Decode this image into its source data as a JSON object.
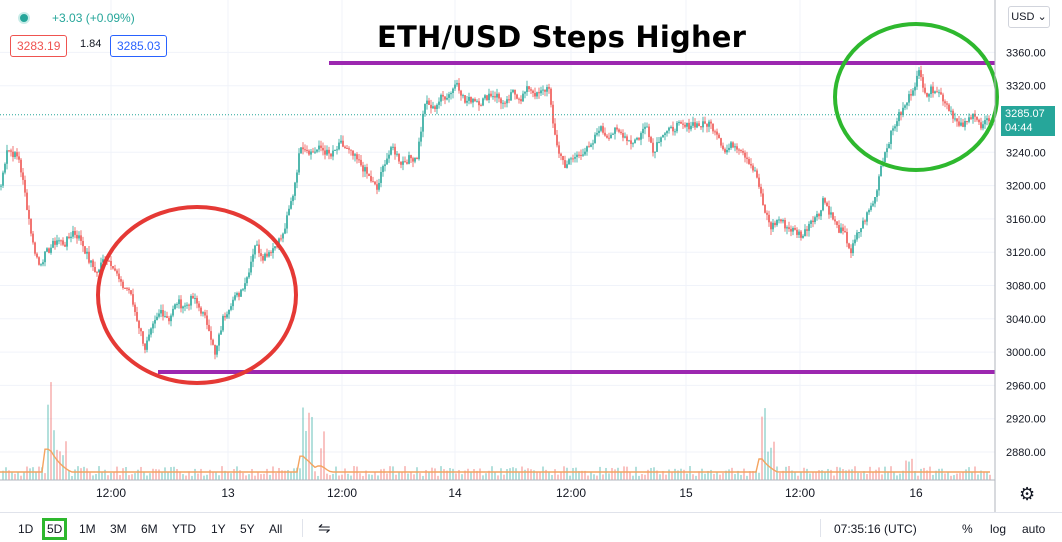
{
  "header": {
    "change": "+3.03 (+0.09%)",
    "bid": "3283.19",
    "spread": "1.84",
    "ask": "3285.03",
    "currency": "USD"
  },
  "price_tag": {
    "price": "3285.07",
    "countdown": "04:44"
  },
  "toolbar": {
    "timeframes": [
      "1D",
      "5D",
      "1M",
      "3M",
      "6M",
      "YTD",
      "1Y",
      "5Y",
      "All"
    ],
    "active_timeframe": "5D",
    "time": "07:35:16 (UTC)",
    "percent": "%",
    "log": "log",
    "auto": "auto"
  },
  "icons": {
    "settings": "gear-icon",
    "compare": "date-range-icon",
    "status": "market-status-dot"
  },
  "colors": {
    "up": "#26a69a",
    "down": "#ef5350",
    "resistance_line": "#9c27b0",
    "support_line": "#9c27b0",
    "red_circle": "#e53935",
    "green_circle": "#2eb82e",
    "volume_ma": "#f4a460"
  },
  "chart_data": {
    "type": "candlestick",
    "title": "ETH/USD Steps Higher",
    "x_tick_labels": [
      "12:00",
      "13",
      "12:00",
      "14",
      "12:00",
      "15",
      "12:00",
      "16"
    ],
    "y_tick_labels": [
      "3360.00",
      "3320.00",
      "3280.00",
      "3240.00",
      "3200.00",
      "3160.00",
      "3120.00",
      "3080.00",
      "3040.00",
      "3000.00",
      "2960.00",
      "2920.00",
      "2880.00"
    ],
    "ylim": [
      2860,
      3380
    ],
    "last_price": 3285.07,
    "price_path": [
      [
        0,
        3200
      ],
      [
        6,
        3245
      ],
      [
        18,
        3232
      ],
      [
        24,
        3190
      ],
      [
        32,
        3130
      ],
      [
        38,
        3105
      ],
      [
        46,
        3120
      ],
      [
        56,
        3135
      ],
      [
        64,
        3130
      ],
      [
        72,
        3145
      ],
      [
        80,
        3135
      ],
      [
        88,
        3110
      ],
      [
        96,
        3095
      ],
      [
        104,
        3115
      ],
      [
        112,
        3105
      ],
      [
        120,
        3080
      ],
      [
        128,
        3075
      ],
      [
        136,
        3040
      ],
      [
        144,
        3005
      ],
      [
        152,
        3030
      ],
      [
        160,
        3050
      ],
      [
        168,
        3040
      ],
      [
        176,
        3060
      ],
      [
        184,
        3055
      ],
      [
        192,
        3065
      ],
      [
        200,
        3050
      ],
      [
        208,
        3030
      ],
      [
        214,
        2995
      ],
      [
        222,
        3040
      ],
      [
        230,
        3060
      ],
      [
        238,
        3070
      ],
      [
        246,
        3090
      ],
      [
        254,
        3130
      ],
      [
        262,
        3115
      ],
      [
        272,
        3125
      ],
      [
        282,
        3140
      ],
      [
        292,
        3190
      ],
      [
        300,
        3250
      ],
      [
        310,
        3240
      ],
      [
        320,
        3245
      ],
      [
        330,
        3235
      ],
      [
        340,
        3250
      ],
      [
        350,
        3238
      ],
      [
        360,
        3225
      ],
      [
        368,
        3210
      ],
      [
        376,
        3195
      ],
      [
        384,
        3230
      ],
      [
        392,
        3245
      ],
      [
        400,
        3228
      ],
      [
        408,
        3232
      ],
      [
        416,
        3235
      ],
      [
        424,
        3300
      ],
      [
        432,
        3292
      ],
      [
        440,
        3305
      ],
      [
        448,
        3310
      ],
      [
        456,
        3325
      ],
      [
        464,
        3300
      ],
      [
        472,
        3305
      ],
      [
        480,
        3300
      ],
      [
        488,
        3310
      ],
      [
        496,
        3308
      ],
      [
        504,
        3295
      ],
      [
        512,
        3312
      ],
      [
        520,
        3305
      ],
      [
        528,
        3318
      ],
      [
        536,
        3308
      ],
      [
        544,
        3315
      ],
      [
        548,
        3320
      ],
      [
        552,
        3270
      ],
      [
        558,
        3240
      ],
      [
        564,
        3225
      ],
      [
        572,
        3232
      ],
      [
        580,
        3240
      ],
      [
        590,
        3245
      ],
      [
        598,
        3270
      ],
      [
        606,
        3260
      ],
      [
        614,
        3265
      ],
      [
        622,
        3262
      ],
      [
        630,
        3252
      ],
      [
        638,
        3258
      ],
      [
        646,
        3275
      ],
      [
        652,
        3240
      ],
      [
        660,
        3262
      ],
      [
        668,
        3265
      ],
      [
        676,
        3272
      ],
      [
        684,
        3270
      ],
      [
        692,
        3275
      ],
      [
        700,
        3272
      ],
      [
        708,
        3275
      ],
      [
        716,
        3265
      ],
      [
        724,
        3240
      ],
      [
        732,
        3250
      ],
      [
        740,
        3245
      ],
      [
        748,
        3230
      ],
      [
        756,
        3210
      ],
      [
        762,
        3175
      ],
      [
        770,
        3150
      ],
      [
        778,
        3160
      ],
      [
        786,
        3150
      ],
      [
        794,
        3145
      ],
      [
        802,
        3140
      ],
      [
        810,
        3160
      ],
      [
        818,
        3165
      ],
      [
        822,
        3185
      ],
      [
        828,
        3170
      ],
      [
        836,
        3150
      ],
      [
        844,
        3140
      ],
      [
        850,
        3120
      ],
      [
        856,
        3140
      ],
      [
        862,
        3155
      ],
      [
        868,
        3170
      ],
      [
        874,
        3185
      ],
      [
        880,
        3225
      ],
      [
        888,
        3255
      ],
      [
        896,
        3280
      ],
      [
        904,
        3295
      ],
      [
        912,
        3318
      ],
      [
        918,
        3335
      ],
      [
        926,
        3310
      ],
      [
        934,
        3318
      ],
      [
        942,
        3305
      ],
      [
        950,
        3290
      ],
      [
        958,
        3270
      ],
      [
        966,
        3275
      ],
      [
        972,
        3290
      ],
      [
        980,
        3268
      ],
      [
        988,
        3280
      ],
      [
        994,
        3285
      ]
    ]
  }
}
